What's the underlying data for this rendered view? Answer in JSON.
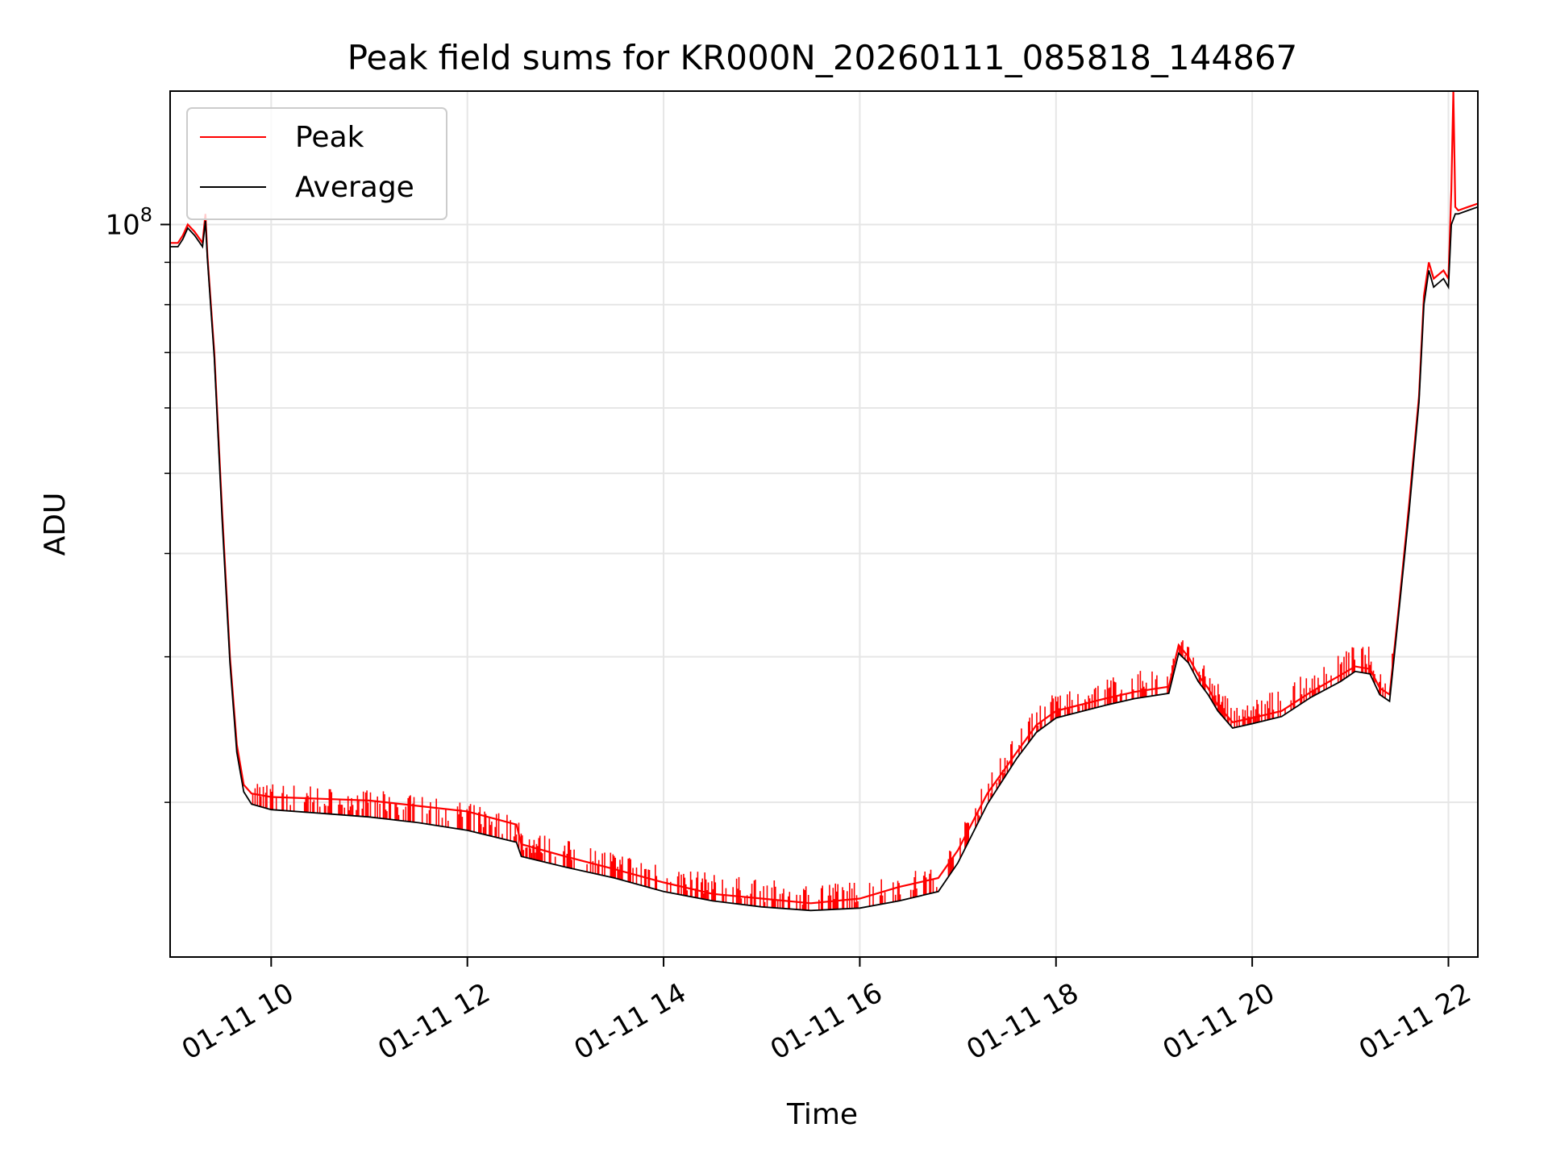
{
  "chart_data": {
    "type": "line",
    "title": "Peak field sums for KR000N_20260111_085818_144867",
    "xlabel": "Time",
    "ylabel": "ADU",
    "yscale": "log",
    "ylim": [
      13000000,
      145000000
    ],
    "xlim_hours": [
      8.97,
      22.3
    ],
    "grid": true,
    "legend_position": "upper-left",
    "x_ticks": [
      {
        "hour": 10,
        "label": "01-11 10"
      },
      {
        "hour": 12,
        "label": "01-11 12"
      },
      {
        "hour": 14,
        "label": "01-11 14"
      },
      {
        "hour": 16,
        "label": "01-11 16"
      },
      {
        "hour": 18,
        "label": "01-11 18"
      },
      {
        "hour": 20,
        "label": "01-11 20"
      },
      {
        "hour": 22,
        "label": "01-11 22"
      }
    ],
    "y_major_ticks": [
      {
        "value": 100000000,
        "base": "10",
        "exponent": "8"
      }
    ],
    "y_minor_ticks": [
      20000000,
      30000000,
      40000000,
      50000000,
      60000000,
      70000000,
      80000000,
      90000000
    ],
    "series": [
      {
        "name": "Peak",
        "color": "#ff0000",
        "points": [
          [
            8.97,
            95000000.0
          ],
          [
            9.05,
            95000000.0
          ],
          [
            9.1,
            97000000.0
          ],
          [
            9.15,
            100000000.0
          ],
          [
            9.22,
            98000000.0
          ],
          [
            9.3,
            95000000.0
          ],
          [
            9.33,
            103000000.0
          ],
          [
            9.35,
            92000000.0
          ],
          [
            9.42,
            70000000.0
          ],
          [
            9.5,
            45000000.0
          ],
          [
            9.58,
            30000000.0
          ],
          [
            9.65,
            23500000.0
          ],
          [
            9.72,
            21000000.0
          ],
          [
            9.8,
            20500000.0
          ],
          [
            10.0,
            20300000.0
          ],
          [
            10.5,
            20200000.0
          ],
          [
            11.0,
            20100000.0
          ],
          [
            11.5,
            19800000.0
          ],
          [
            12.0,
            19500000.0
          ],
          [
            12.5,
            18800000.0
          ],
          [
            12.55,
            17800000.0
          ],
          [
            13.0,
            17200000.0
          ],
          [
            13.5,
            16600000.0
          ],
          [
            14.0,
            16000000.0
          ],
          [
            14.5,
            15500000.0
          ],
          [
            15.0,
            15300000.0
          ],
          [
            15.5,
            15100000.0
          ],
          [
            16.0,
            15300000.0
          ],
          [
            16.4,
            15800000.0
          ],
          [
            16.8,
            16200000.0
          ],
          [
            17.0,
            17500000.0
          ],
          [
            17.3,
            20500000.0
          ],
          [
            17.6,
            23000000.0
          ],
          [
            17.8,
            24800000.0
          ],
          [
            18.0,
            25800000.0
          ],
          [
            18.5,
            26700000.0
          ],
          [
            18.8,
            27200000.0
          ],
          [
            19.15,
            27600000.0
          ],
          [
            19.25,
            31000000.0
          ],
          [
            19.35,
            30000000.0
          ],
          [
            19.45,
            28500000.0
          ],
          [
            19.55,
            27500000.0
          ],
          [
            19.65,
            26200000.0
          ],
          [
            19.8,
            25000000.0
          ],
          [
            20.0,
            25300000.0
          ],
          [
            20.3,
            25800000.0
          ],
          [
            20.6,
            27200000.0
          ],
          [
            20.9,
            28500000.0
          ],
          [
            21.05,
            29200000.0
          ],
          [
            21.2,
            29000000.0
          ],
          [
            21.3,
            27500000.0
          ],
          [
            21.4,
            27000000.0
          ],
          [
            21.5,
            35000000.0
          ],
          [
            21.6,
            46000000.0
          ],
          [
            21.7,
            62000000.0
          ],
          [
            21.75,
            82000000.0
          ],
          [
            21.8,
            90000000.0
          ],
          [
            21.85,
            86000000.0
          ],
          [
            21.95,
            88000000.0
          ],
          [
            22.0,
            86000000.0
          ],
          [
            22.03,
            110000000.0
          ],
          [
            22.05,
            145000000.0
          ],
          [
            22.07,
            105000000.0
          ],
          [
            22.1,
            104000000.0
          ],
          [
            22.2,
            105000000.0
          ],
          [
            22.3,
            106000000.0
          ]
        ]
      },
      {
        "name": "Average",
        "color": "#000000",
        "points": [
          [
            8.97,
            94000000.0
          ],
          [
            9.05,
            94000000.0
          ],
          [
            9.1,
            96000000.0
          ],
          [
            9.15,
            99000000.0
          ],
          [
            9.22,
            97000000.0
          ],
          [
            9.3,
            94000000.0
          ],
          [
            9.33,
            101000000.0
          ],
          [
            9.35,
            91000000.0
          ],
          [
            9.42,
            69000000.0
          ],
          [
            9.5,
            44000000.0
          ],
          [
            9.58,
            29500000.0
          ],
          [
            9.65,
            23000000.0
          ],
          [
            9.72,
            20600000.0
          ],
          [
            9.8,
            19900000.0
          ],
          [
            10.0,
            19600000.0
          ],
          [
            10.5,
            19400000.0
          ],
          [
            11.0,
            19200000.0
          ],
          [
            11.5,
            18900000.0
          ],
          [
            12.0,
            18500000.0
          ],
          [
            12.5,
            17900000.0
          ],
          [
            12.55,
            17200000.0
          ],
          [
            13.0,
            16700000.0
          ],
          [
            13.5,
            16200000.0
          ],
          [
            14.0,
            15600000.0
          ],
          [
            14.5,
            15200000.0
          ],
          [
            15.0,
            14950000.0
          ],
          [
            15.5,
            14800000.0
          ],
          [
            16.0,
            14900000.0
          ],
          [
            16.4,
            15200000.0
          ],
          [
            16.8,
            15600000.0
          ],
          [
            17.0,
            16900000.0
          ],
          [
            17.3,
            19900000.0
          ],
          [
            17.6,
            22600000.0
          ],
          [
            17.8,
            24300000.0
          ],
          [
            18.0,
            25300000.0
          ],
          [
            18.5,
            26200000.0
          ],
          [
            18.8,
            26700000.0
          ],
          [
            19.15,
            27100000.0
          ],
          [
            19.25,
            30300000.0
          ],
          [
            19.35,
            29500000.0
          ],
          [
            19.45,
            28000000.0
          ],
          [
            19.55,
            27000000.0
          ],
          [
            19.65,
            25800000.0
          ],
          [
            19.8,
            24600000.0
          ],
          [
            20.0,
            24900000.0
          ],
          [
            20.3,
            25400000.0
          ],
          [
            20.6,
            26800000.0
          ],
          [
            20.9,
            28000000.0
          ],
          [
            21.05,
            28800000.0
          ],
          [
            21.2,
            28600000.0
          ],
          [
            21.3,
            27000000.0
          ],
          [
            21.4,
            26500000.0
          ],
          [
            21.5,
            34500000.0
          ],
          [
            21.6,
            45000000.0
          ],
          [
            21.7,
            61000000.0
          ],
          [
            21.75,
            80000000.0
          ],
          [
            21.8,
            88000000.0
          ],
          [
            21.85,
            84000000.0
          ],
          [
            21.95,
            86000000.0
          ],
          [
            22.0,
            84000000.0
          ],
          [
            22.03,
            100000000.0
          ],
          [
            22.07,
            103000000.0
          ],
          [
            22.1,
            103000000.0
          ],
          [
            22.2,
            104000000.0
          ],
          [
            22.3,
            105000000.0
          ]
        ]
      }
    ]
  }
}
